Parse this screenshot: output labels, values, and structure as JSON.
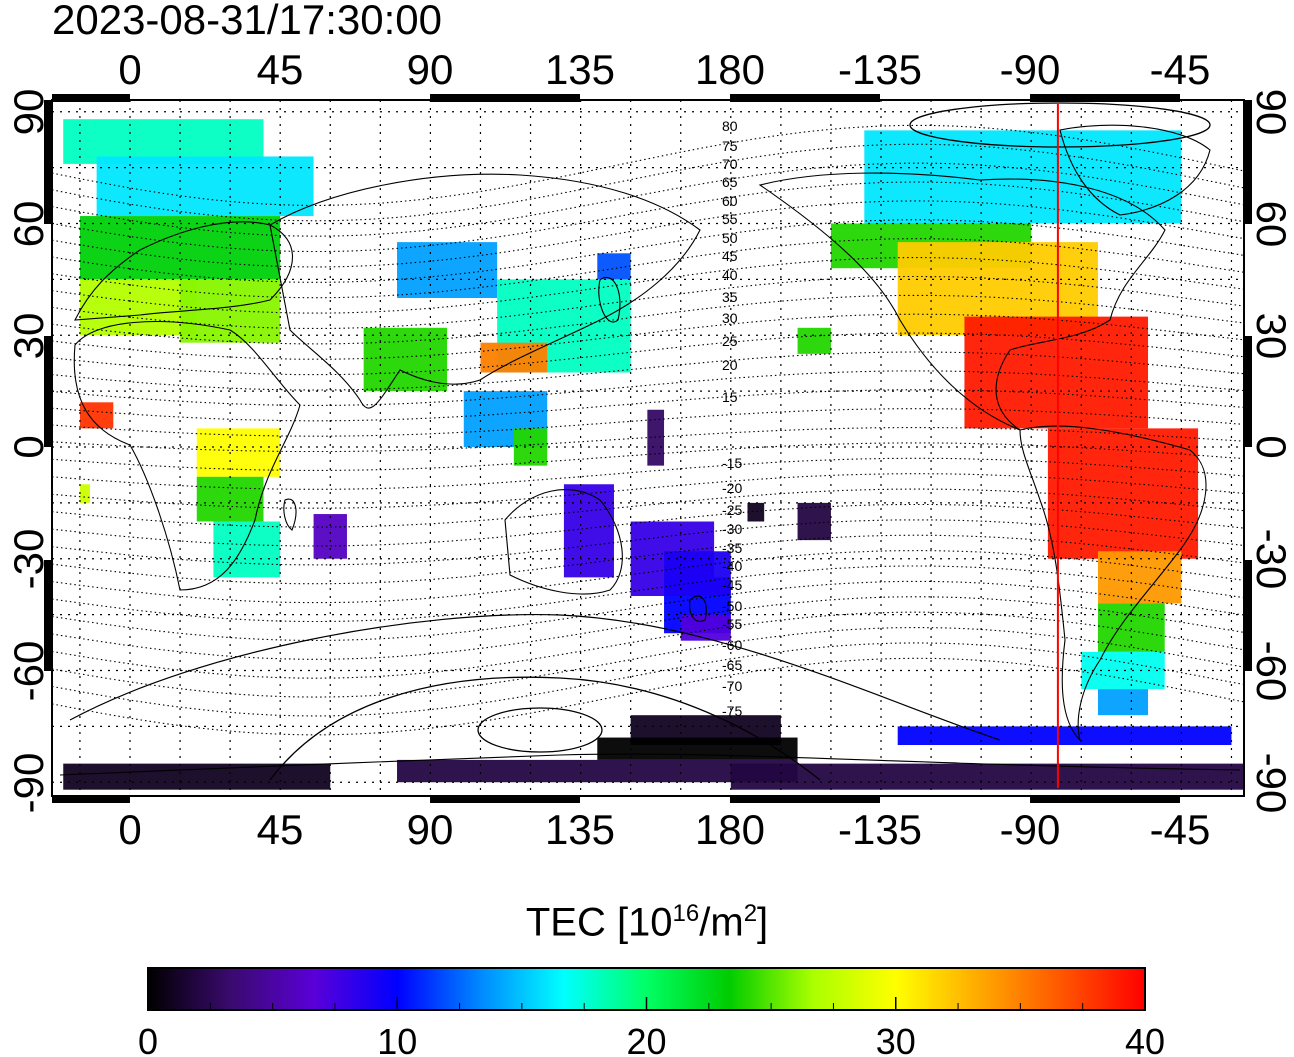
{
  "header": {
    "timestamp": "2023-08-31/17:30:00"
  },
  "map": {
    "lon_ticks_top": [
      "0",
      "45",
      "90",
      "135",
      "180",
      "-135",
      "-90",
      "-45"
    ],
    "lon_ticks_bottom": [
      "0",
      "45",
      "90",
      "135",
      "180",
      "-135",
      "-90",
      "-45"
    ],
    "lat_ticks_left": [
      "90",
      "60",
      "30",
      "0",
      "-30",
      "-60",
      "-90"
    ],
    "lat_ticks_right": [
      "90",
      "60",
      "30",
      "0",
      "-30",
      "-60",
      "-90"
    ],
    "contour_labels": [
      "80",
      "75",
      "70",
      "65",
      "60",
      "55",
      "50",
      "45",
      "40",
      "35",
      "30",
      "25",
      "20",
      "15",
      "-15",
      "-20",
      "-25",
      "-30",
      "-35",
      "-40",
      "-45",
      "-50",
      "-55",
      "-60",
      "-65",
      "-70",
      "-75"
    ],
    "terminator_longitude": -82,
    "terminator_color": "#ff0000"
  },
  "colorbar": {
    "title_prefix": "TEC  [10",
    "title_exp1": "16",
    "title_mid": "/m",
    "title_exp2": "2",
    "title_suffix": "]",
    "min": 0,
    "max": 40,
    "tick_labels": [
      "0",
      "10",
      "20",
      "30",
      "40"
    ],
    "stops": [
      "#000000",
      "#3a0a6e",
      "#5a00d8",
      "#0000ff",
      "#0088ff",
      "#00ffff",
      "#00ff66",
      "#00cc00",
      "#aaff00",
      "#ffff00",
      "#ffaa00",
      "#ff5500",
      "#ff0000"
    ]
  }
}
